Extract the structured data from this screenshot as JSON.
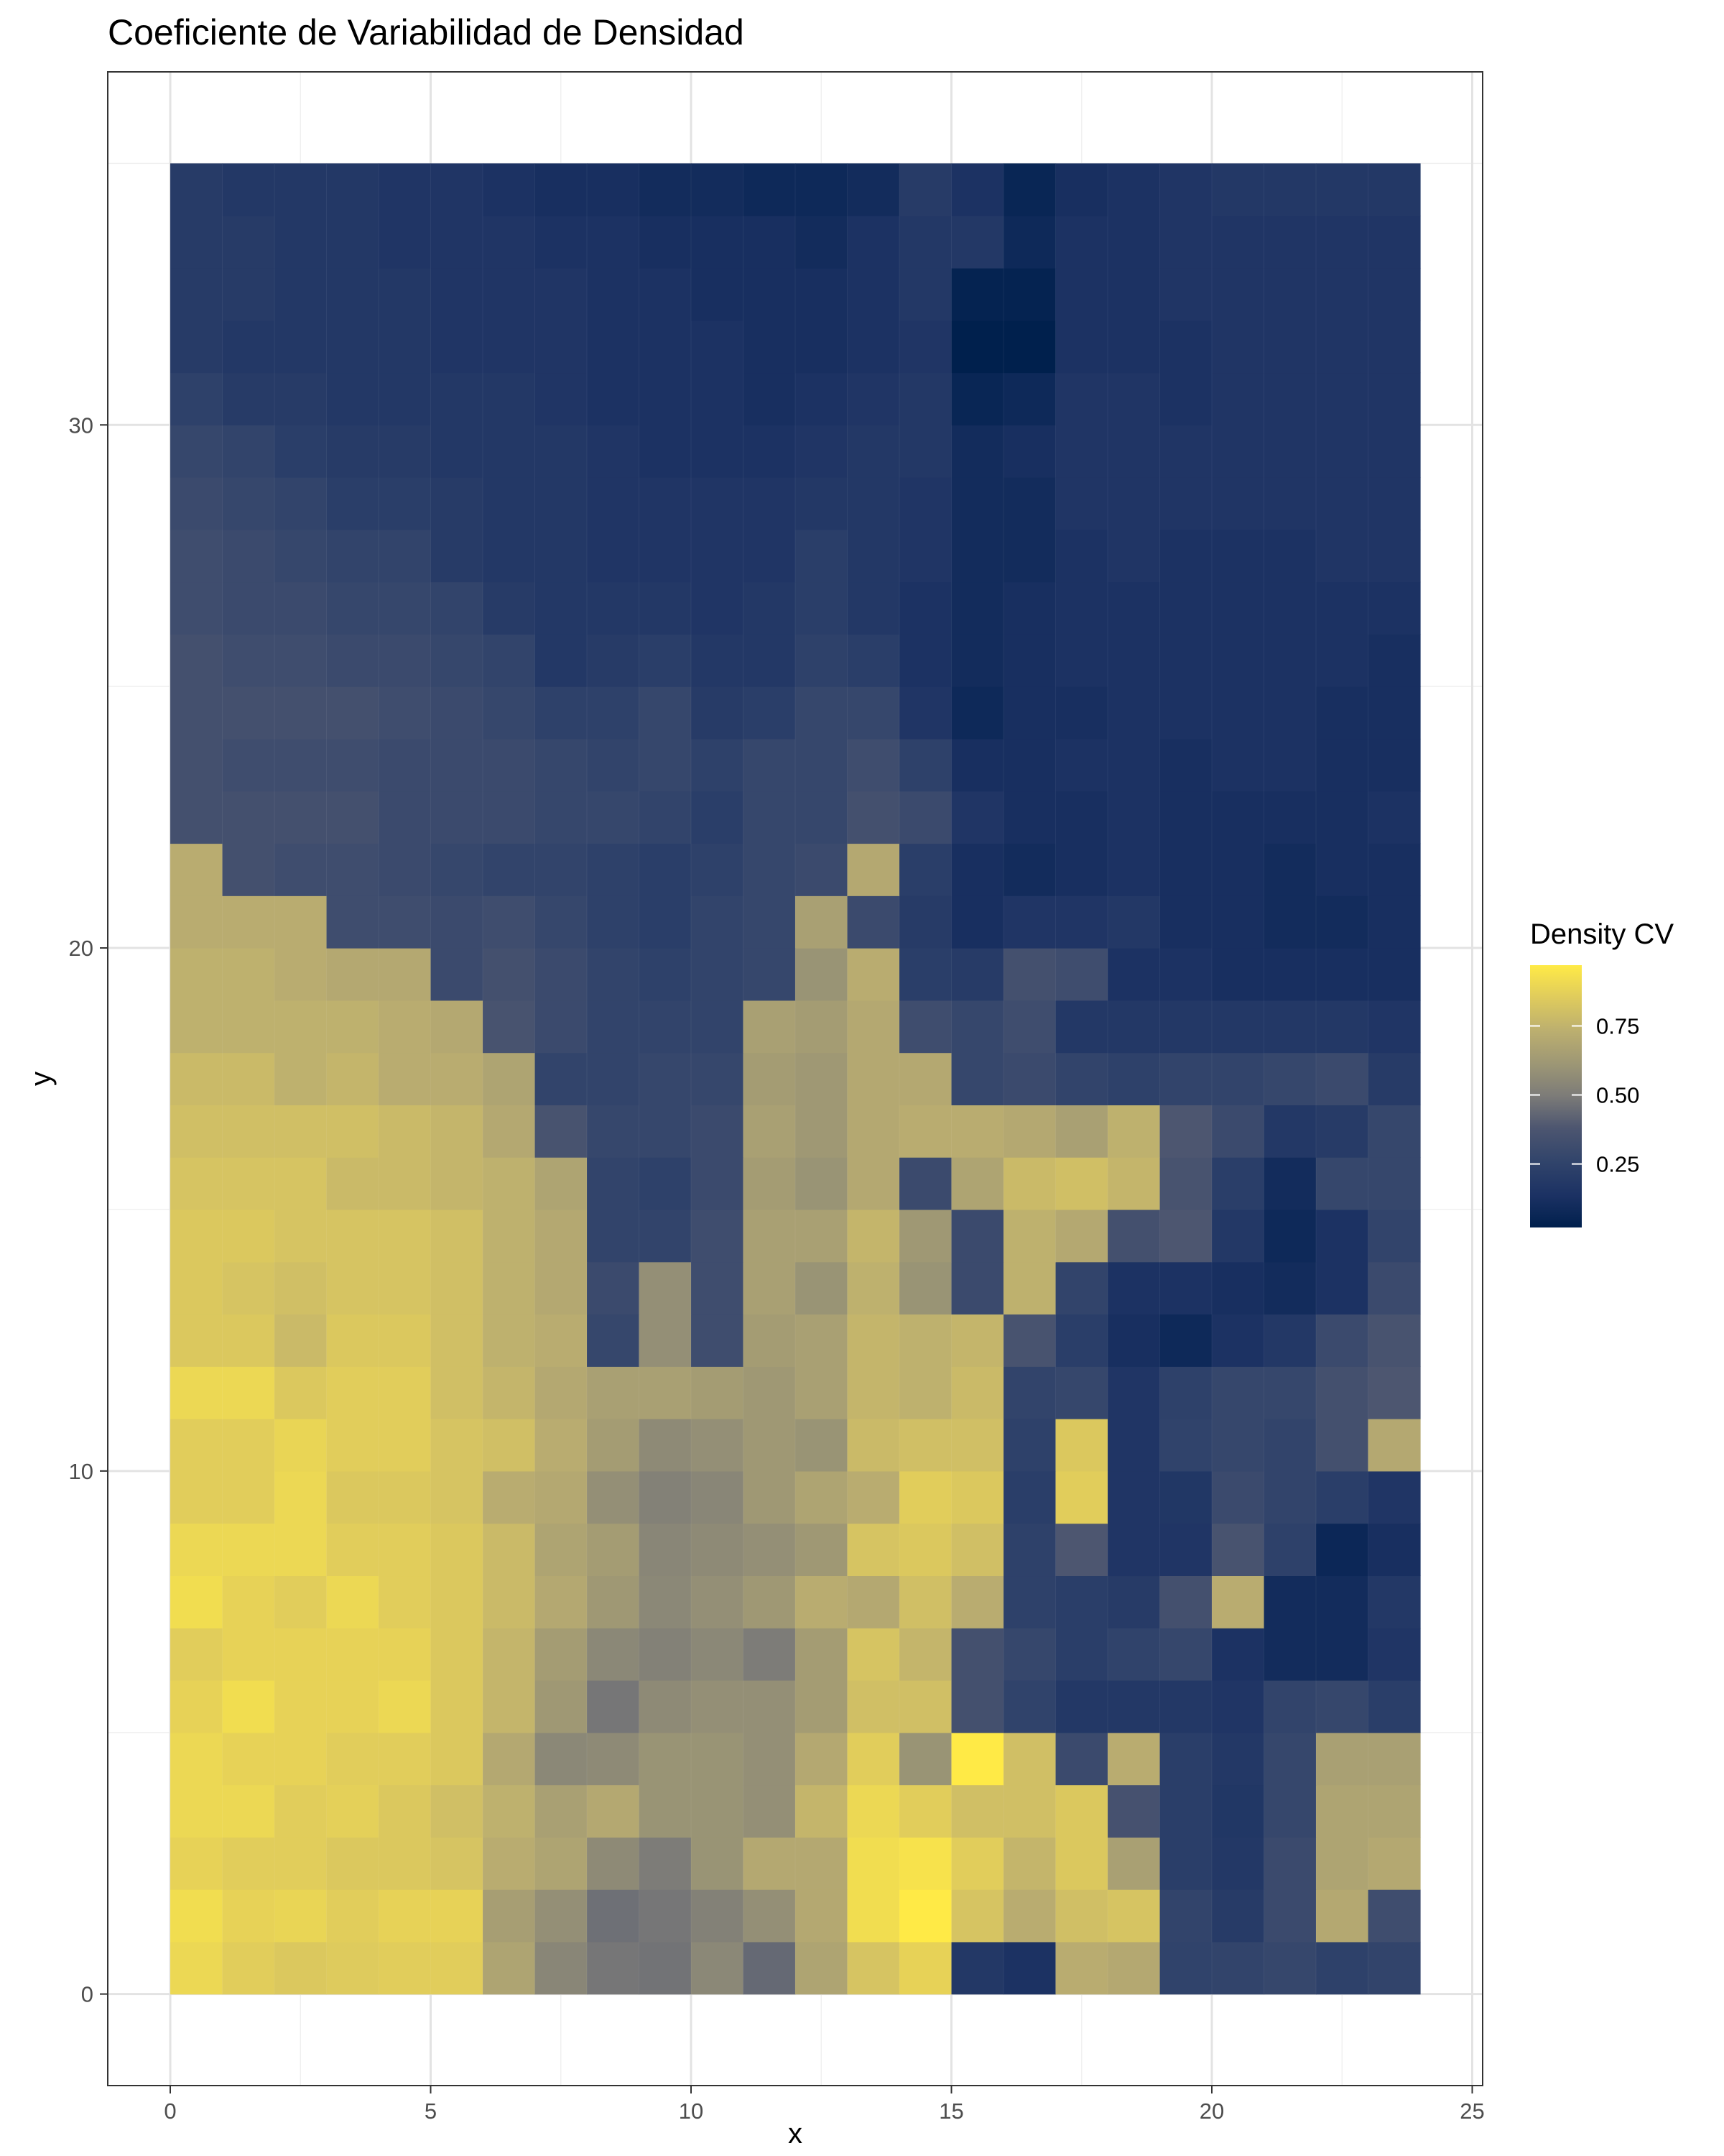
{
  "chart_data": {
    "type": "heatmap",
    "title": "Coeficiente de Variabilidad de Densidad",
    "xlabel": "x",
    "ylabel": "y",
    "xlim": [
      -1.2,
      25.2
    ],
    "ylim": [
      -1.75,
      36.75
    ],
    "x_ticks": [
      0,
      5,
      10,
      15,
      20,
      25
    ],
    "y_ticks": [
      0,
      10,
      20,
      30
    ],
    "x_tick_labels": [
      "0",
      "5",
      "10",
      "15",
      "20",
      "25"
    ],
    "y_tick_labels": [
      "0",
      "10",
      "20",
      "30"
    ],
    "grid": true,
    "legend": {
      "title": "Density CV",
      "position": "right",
      "ticks": [
        0.25,
        0.5,
        0.75
      ],
      "tick_labels": [
        "0.25",
        "0.50",
        "0.75"
      ],
      "min": 0.02,
      "max": 0.97
    },
    "colorscale": {
      "name": "cividis",
      "low": "#00204d",
      "mid": "#7c7b78",
      "high": "#ffea46"
    },
    "cell_width": 1,
    "cell_height": 1,
    "x": [
      0.5,
      1.5,
      2.5,
      3.5,
      4.5,
      5.5,
      6.5,
      7.5,
      8.5,
      9.5,
      10.5,
      11.5,
      12.5,
      13.5,
      14.5,
      15.5,
      16.5,
      17.5,
      18.5,
      19.5,
      20.5,
      21.5,
      22.5,
      23.5
    ],
    "y": [
      0.5,
      1.5,
      2.5,
      3.5,
      4.5,
      5.5,
      6.5,
      7.5,
      8.5,
      9.5,
      10.5,
      11.5,
      12.5,
      13.5,
      14.5,
      15.5,
      16.5,
      17.5,
      18.5,
      19.5,
      20.5,
      21.5,
      22.5,
      23.5,
      24.5,
      25.5,
      26.5,
      27.5,
      28.5,
      29.5,
      30.5,
      31.5,
      32.5,
      33.5,
      34.5
    ],
    "z": [
      [
        0.9,
        0.86,
        0.84,
        0.85,
        0.86,
        0.86,
        0.68,
        0.54,
        0.48,
        0.47,
        0.55,
        0.44,
        0.68,
        0.82,
        0.88,
        0.18,
        0.14,
        0.72,
        0.7,
        0.25,
        0.26,
        0.28,
        0.24,
        0.26
      ],
      [
        0.92,
        0.88,
        0.89,
        0.86,
        0.88,
        0.88,
        0.65,
        0.58,
        0.46,
        0.48,
        0.52,
        0.58,
        0.7,
        0.92,
        0.97,
        0.82,
        0.72,
        0.8,
        0.82,
        0.26,
        0.2,
        0.3,
        0.7,
        0.32
      ],
      [
        0.88,
        0.86,
        0.86,
        0.84,
        0.84,
        0.82,
        0.72,
        0.68,
        0.56,
        0.5,
        0.6,
        0.7,
        0.7,
        0.92,
        0.94,
        0.86,
        0.76,
        0.84,
        0.66,
        0.22,
        0.18,
        0.3,
        0.68,
        0.7
      ],
      [
        0.9,
        0.9,
        0.86,
        0.87,
        0.84,
        0.8,
        0.74,
        0.66,
        0.7,
        0.6,
        0.6,
        0.58,
        0.76,
        0.9,
        0.86,
        0.8,
        0.8,
        0.84,
        0.35,
        0.22,
        0.17,
        0.28,
        0.68,
        0.68
      ],
      [
        0.9,
        0.88,
        0.88,
        0.86,
        0.86,
        0.84,
        0.7,
        0.55,
        0.56,
        0.6,
        0.6,
        0.58,
        0.7,
        0.86,
        0.6,
        0.97,
        0.8,
        0.3,
        0.72,
        0.22,
        0.18,
        0.28,
        0.66,
        0.66
      ],
      [
        0.88,
        0.92,
        0.88,
        0.88,
        0.9,
        0.84,
        0.76,
        0.62,
        0.48,
        0.56,
        0.58,
        0.58,
        0.64,
        0.8,
        0.8,
        0.34,
        0.25,
        0.18,
        0.18,
        0.18,
        0.16,
        0.26,
        0.28,
        0.22
      ],
      [
        0.86,
        0.88,
        0.88,
        0.88,
        0.88,
        0.84,
        0.76,
        0.64,
        0.55,
        0.52,
        0.55,
        0.5,
        0.64,
        0.82,
        0.76,
        0.34,
        0.28,
        0.22,
        0.25,
        0.28,
        0.14,
        0.1,
        0.1,
        0.16
      ],
      [
        0.92,
        0.88,
        0.86,
        0.9,
        0.86,
        0.84,
        0.78,
        0.7,
        0.62,
        0.55,
        0.58,
        0.62,
        0.72,
        0.7,
        0.8,
        0.72,
        0.24,
        0.22,
        0.2,
        0.34,
        0.72,
        0.1,
        0.1,
        0.18
      ],
      [
        0.9,
        0.9,
        0.9,
        0.86,
        0.86,
        0.84,
        0.78,
        0.68,
        0.64,
        0.54,
        0.56,
        0.58,
        0.62,
        0.82,
        0.84,
        0.8,
        0.24,
        0.38,
        0.16,
        0.16,
        0.36,
        0.24,
        0.07,
        0.12
      ],
      [
        0.86,
        0.86,
        0.9,
        0.84,
        0.84,
        0.82,
        0.72,
        0.7,
        0.58,
        0.52,
        0.54,
        0.62,
        0.68,
        0.72,
        0.86,
        0.84,
        0.22,
        0.86,
        0.16,
        0.17,
        0.3,
        0.26,
        0.22,
        0.16
      ],
      [
        0.86,
        0.86,
        0.89,
        0.86,
        0.86,
        0.82,
        0.8,
        0.72,
        0.64,
        0.56,
        0.58,
        0.62,
        0.6,
        0.78,
        0.8,
        0.8,
        0.24,
        0.84,
        0.16,
        0.25,
        0.28,
        0.26,
        0.34,
        0.7
      ],
      [
        0.9,
        0.9,
        0.84,
        0.86,
        0.86,
        0.8,
        0.76,
        0.7,
        0.66,
        0.66,
        0.64,
        0.62,
        0.66,
        0.76,
        0.74,
        0.78,
        0.26,
        0.28,
        0.16,
        0.24,
        0.28,
        0.28,
        0.34,
        0.38
      ],
      [
        0.84,
        0.84,
        0.78,
        0.84,
        0.84,
        0.8,
        0.74,
        0.72,
        0.28,
        0.58,
        0.32,
        0.64,
        0.66,
        0.76,
        0.74,
        0.76,
        0.36,
        0.22,
        0.12,
        0.08,
        0.14,
        0.18,
        0.3,
        0.36
      ],
      [
        0.84,
        0.82,
        0.8,
        0.82,
        0.82,
        0.8,
        0.74,
        0.7,
        0.3,
        0.58,
        0.32,
        0.66,
        0.6,
        0.74,
        0.6,
        0.3,
        0.74,
        0.26,
        0.14,
        0.14,
        0.12,
        0.1,
        0.14,
        0.3
      ],
      [
        0.84,
        0.84,
        0.82,
        0.82,
        0.82,
        0.8,
        0.74,
        0.7,
        0.26,
        0.26,
        0.32,
        0.66,
        0.66,
        0.76,
        0.62,
        0.3,
        0.74,
        0.7,
        0.34,
        0.38,
        0.18,
        0.08,
        0.14,
        0.26
      ],
      [
        0.82,
        0.82,
        0.82,
        0.78,
        0.78,
        0.76,
        0.74,
        0.68,
        0.26,
        0.24,
        0.3,
        0.64,
        0.6,
        0.7,
        0.3,
        0.68,
        0.78,
        0.8,
        0.76,
        0.36,
        0.22,
        0.1,
        0.28,
        0.28
      ],
      [
        0.8,
        0.8,
        0.8,
        0.8,
        0.78,
        0.76,
        0.7,
        0.36,
        0.28,
        0.28,
        0.3,
        0.66,
        0.62,
        0.7,
        0.72,
        0.72,
        0.7,
        0.66,
        0.74,
        0.38,
        0.3,
        0.18,
        0.2,
        0.28
      ],
      [
        0.78,
        0.78,
        0.74,
        0.76,
        0.72,
        0.72,
        0.68,
        0.26,
        0.26,
        0.28,
        0.28,
        0.64,
        0.62,
        0.7,
        0.7,
        0.28,
        0.3,
        0.26,
        0.24,
        0.26,
        0.26,
        0.28,
        0.3,
        0.2
      ],
      [
        0.74,
        0.74,
        0.74,
        0.74,
        0.72,
        0.7,
        0.36,
        0.3,
        0.26,
        0.26,
        0.26,
        0.66,
        0.64,
        0.7,
        0.32,
        0.28,
        0.32,
        0.18,
        0.18,
        0.18,
        0.18,
        0.18,
        0.18,
        0.16
      ],
      [
        0.74,
        0.74,
        0.72,
        0.7,
        0.7,
        0.3,
        0.34,
        0.3,
        0.26,
        0.24,
        0.26,
        0.28,
        0.6,
        0.72,
        0.22,
        0.2,
        0.34,
        0.32,
        0.14,
        0.14,
        0.12,
        0.12,
        0.12,
        0.12
      ],
      [
        0.72,
        0.72,
        0.72,
        0.32,
        0.32,
        0.3,
        0.32,
        0.28,
        0.24,
        0.22,
        0.26,
        0.28,
        0.66,
        0.3,
        0.2,
        0.12,
        0.16,
        0.16,
        0.18,
        0.12,
        0.12,
        0.1,
        0.1,
        0.12
      ],
      [
        0.72,
        0.34,
        0.32,
        0.32,
        0.3,
        0.28,
        0.26,
        0.26,
        0.24,
        0.22,
        0.24,
        0.28,
        0.3,
        0.7,
        0.22,
        0.12,
        0.1,
        0.12,
        0.14,
        0.12,
        0.12,
        0.1,
        0.12,
        0.12
      ],
      [
        0.34,
        0.34,
        0.34,
        0.34,
        0.3,
        0.3,
        0.3,
        0.28,
        0.28,
        0.26,
        0.22,
        0.28,
        0.28,
        0.34,
        0.3,
        0.16,
        0.12,
        0.12,
        0.14,
        0.12,
        0.12,
        0.12,
        0.12,
        0.14
      ],
      [
        0.34,
        0.32,
        0.32,
        0.32,
        0.3,
        0.3,
        0.3,
        0.28,
        0.26,
        0.28,
        0.24,
        0.28,
        0.28,
        0.32,
        0.24,
        0.12,
        0.12,
        0.14,
        0.14,
        0.12,
        0.14,
        0.14,
        0.12,
        0.12
      ],
      [
        0.34,
        0.34,
        0.34,
        0.34,
        0.32,
        0.3,
        0.28,
        0.24,
        0.24,
        0.28,
        0.2,
        0.22,
        0.28,
        0.28,
        0.16,
        0.08,
        0.12,
        0.12,
        0.14,
        0.14,
        0.14,
        0.14,
        0.12,
        0.12
      ],
      [
        0.34,
        0.32,
        0.32,
        0.3,
        0.3,
        0.28,
        0.26,
        0.18,
        0.2,
        0.22,
        0.18,
        0.18,
        0.24,
        0.22,
        0.14,
        0.1,
        0.12,
        0.14,
        0.14,
        0.14,
        0.14,
        0.14,
        0.14,
        0.12
      ],
      [
        0.32,
        0.3,
        0.3,
        0.28,
        0.28,
        0.26,
        0.2,
        0.18,
        0.18,
        0.18,
        0.16,
        0.18,
        0.22,
        0.18,
        0.14,
        0.1,
        0.12,
        0.14,
        0.14,
        0.14,
        0.14,
        0.14,
        0.14,
        0.14
      ],
      [
        0.32,
        0.3,
        0.28,
        0.26,
        0.26,
        0.2,
        0.18,
        0.18,
        0.16,
        0.16,
        0.16,
        0.16,
        0.22,
        0.18,
        0.16,
        0.1,
        0.1,
        0.14,
        0.16,
        0.14,
        0.14,
        0.14,
        0.16,
        0.16
      ],
      [
        0.3,
        0.28,
        0.26,
        0.22,
        0.22,
        0.2,
        0.18,
        0.18,
        0.16,
        0.16,
        0.16,
        0.16,
        0.18,
        0.18,
        0.16,
        0.1,
        0.1,
        0.16,
        0.16,
        0.16,
        0.16,
        0.16,
        0.16,
        0.16
      ],
      [
        0.28,
        0.26,
        0.22,
        0.2,
        0.2,
        0.18,
        0.18,
        0.18,
        0.16,
        0.14,
        0.14,
        0.14,
        0.16,
        0.18,
        0.18,
        0.1,
        0.12,
        0.16,
        0.16,
        0.16,
        0.16,
        0.16,
        0.16,
        0.16
      ],
      [
        0.24,
        0.2,
        0.2,
        0.18,
        0.18,
        0.18,
        0.18,
        0.16,
        0.14,
        0.14,
        0.14,
        0.12,
        0.14,
        0.16,
        0.18,
        0.06,
        0.08,
        0.16,
        0.16,
        0.14,
        0.16,
        0.16,
        0.16,
        0.16
      ],
      [
        0.2,
        0.18,
        0.18,
        0.18,
        0.18,
        0.16,
        0.16,
        0.16,
        0.14,
        0.14,
        0.14,
        0.12,
        0.12,
        0.14,
        0.16,
        0.02,
        0.02,
        0.14,
        0.14,
        0.14,
        0.16,
        0.16,
        0.16,
        0.16
      ],
      [
        0.2,
        0.2,
        0.18,
        0.18,
        0.18,
        0.16,
        0.16,
        0.16,
        0.14,
        0.14,
        0.12,
        0.12,
        0.12,
        0.14,
        0.18,
        0.04,
        0.04,
        0.14,
        0.14,
        0.16,
        0.16,
        0.16,
        0.16,
        0.16
      ],
      [
        0.2,
        0.2,
        0.18,
        0.18,
        0.16,
        0.16,
        0.16,
        0.14,
        0.14,
        0.12,
        0.12,
        0.12,
        0.1,
        0.14,
        0.18,
        0.18,
        0.08,
        0.14,
        0.14,
        0.16,
        0.16,
        0.16,
        0.16,
        0.16
      ],
      [
        0.2,
        0.18,
        0.18,
        0.18,
        0.16,
        0.16,
        0.14,
        0.12,
        0.12,
        0.1,
        0.1,
        0.08,
        0.08,
        0.1,
        0.2,
        0.14,
        0.06,
        0.12,
        0.14,
        0.16,
        0.18,
        0.18,
        0.18,
        0.18
      ]
    ]
  }
}
